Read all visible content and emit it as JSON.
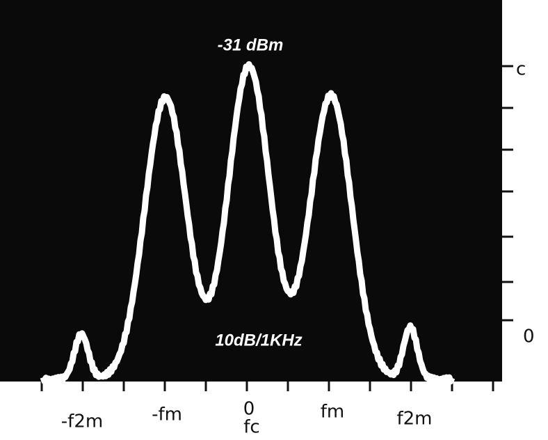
{
  "screen": {
    "marker_label": "-31 dBm",
    "scale_label": "10dB/1KHz"
  },
  "axis_labels": [
    "-f2m",
    "-fm",
    "0",
    "fm",
    "f2m"
  ],
  "carrier_label": "fc",
  "side_marks": [
    "c",
    "0"
  ]
}
